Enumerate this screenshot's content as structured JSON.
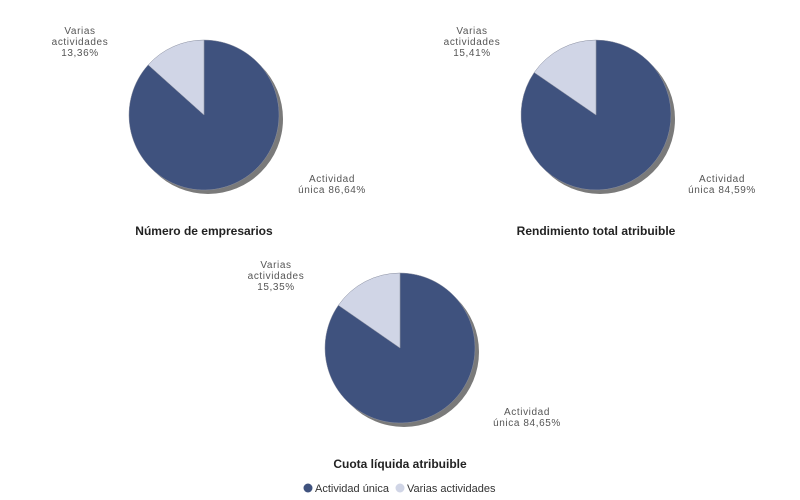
{
  "chart_data": [
    {
      "type": "pie",
      "title": "Número de empresarios",
      "slices": [
        {
          "name": "Actividad única",
          "value": 86.64,
          "label_lines": [
            "Actividad",
            "única 86,64%"
          ]
        },
        {
          "name": "Varias actividades",
          "value": 13.36,
          "label_lines": [
            "Varias",
            "actividades",
            "13,36%"
          ]
        }
      ]
    },
    {
      "type": "pie",
      "title": "Rendimiento total atribuible",
      "slices": [
        {
          "name": "Actividad única",
          "value": 84.59,
          "label_lines": [
            "Actividad",
            "única 84,59%"
          ]
        },
        {
          "name": "Varias actividades",
          "value": 15.41,
          "label_lines": [
            "Varias",
            "actividades",
            "15,41%"
          ]
        }
      ]
    },
    {
      "type": "pie",
      "title": "Cuota líquida atribuible",
      "slices": [
        {
          "name": "Actividad única",
          "value": 84.65,
          "label_lines": [
            "Actividad",
            "única 84,65%"
          ]
        },
        {
          "name": "Varias actividades",
          "value": 15.35,
          "label_lines": [
            "Varias",
            "actividades",
            "15,35%"
          ]
        }
      ]
    }
  ],
  "legend": {
    "position": "bottom",
    "items": [
      {
        "label": "Actividad única",
        "color": "#3f527e"
      },
      {
        "label": "Varias actividades",
        "color": "#d0d5e6"
      }
    ]
  }
}
